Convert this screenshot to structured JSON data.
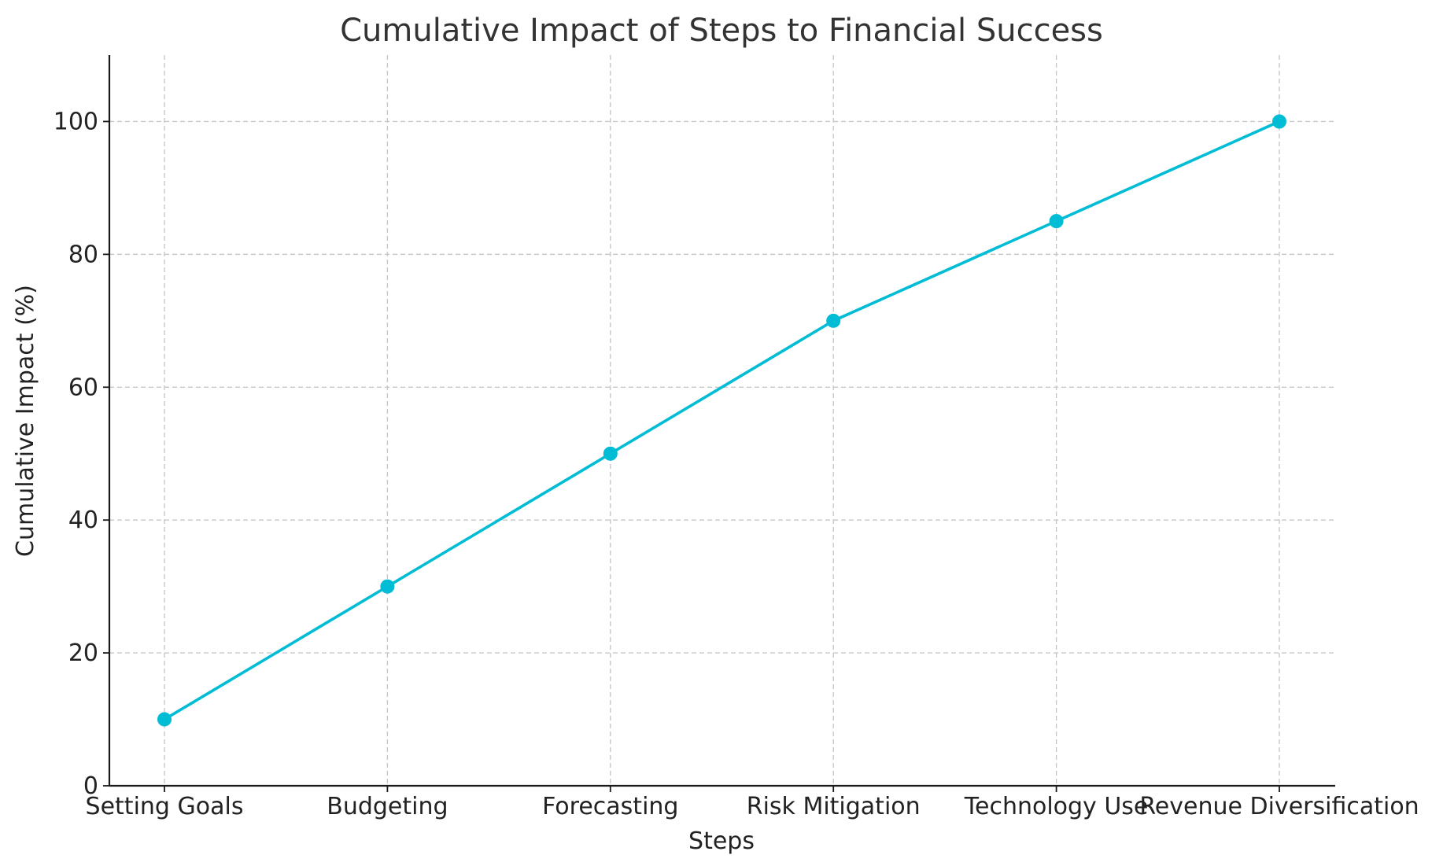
{
  "chart_data": {
    "type": "line",
    "title": "Cumulative Impact of Steps to Financial Success",
    "xlabel": "Steps",
    "ylabel": "Cumulative Impact (%)",
    "categories": [
      "Setting Goals",
      "Budgeting",
      "Forecasting",
      "Risk Mitigation",
      "Technology Use",
      "Revenue Diversification"
    ],
    "series": [
      {
        "values": [
          10,
          30,
          50,
          70,
          85,
          100
        ],
        "color": "#00bcd4",
        "marker": "circle"
      }
    ],
    "yticks": [
      0,
      20,
      40,
      60,
      80,
      100
    ],
    "ylim": [
      0,
      110
    ],
    "grid": true
  }
}
